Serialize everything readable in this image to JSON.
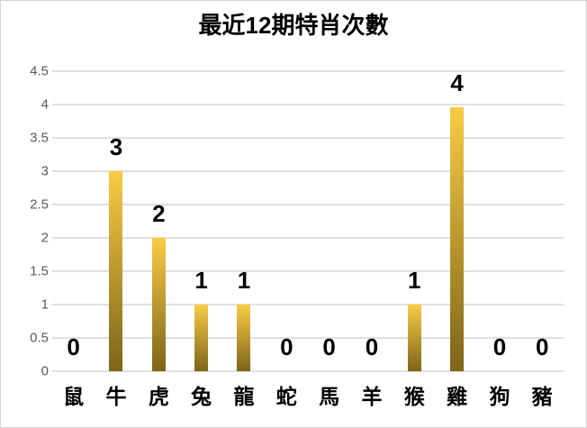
{
  "chart_data": {
    "type": "bar",
    "title": "最近12期特肖次數",
    "categories": [
      "鼠",
      "牛",
      "虎",
      "兔",
      "龍",
      "蛇",
      "馬",
      "羊",
      "猴",
      "雞",
      "狗",
      "豬"
    ],
    "values": [
      0,
      3,
      2,
      1,
      1,
      0,
      0,
      0,
      1,
      4,
      0,
      0
    ],
    "data_labels": [
      "0",
      "3",
      "2",
      "1",
      "1",
      "0",
      "0",
      "0",
      "1",
      "4",
      "0",
      "0"
    ],
    "y_tick_labels": [
      "0",
      "0.5",
      "1",
      "1.5",
      "2",
      "2.5",
      "3",
      "3.5",
      "4",
      "4.5"
    ],
    "y_tick_values": [
      0,
      0.5,
      1,
      1.5,
      2,
      2.5,
      3,
      3.5,
      4,
      4.5
    ],
    "ylim": [
      0,
      4.5
    ],
    "xlabel": "",
    "ylabel": "",
    "grid": "horizontal",
    "legend": "none",
    "colors": {
      "bar_gradient_top": "#f9cb45",
      "bar_gradient_bottom": "#7d6519",
      "gridline": "#dfdfdf",
      "tick_label": "#595959",
      "text": "#000000",
      "frame_border": "#d3d3d3",
      "background": "#ffffff"
    }
  }
}
